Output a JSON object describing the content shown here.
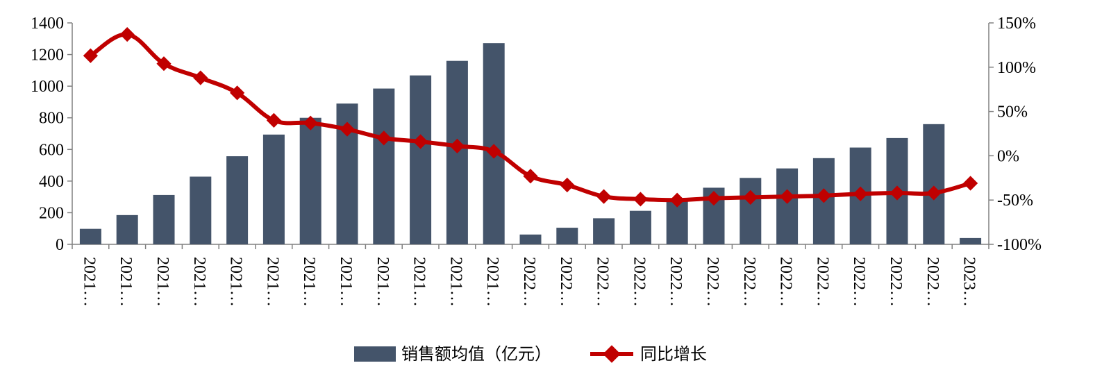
{
  "chart_data": {
    "type": "bar+line",
    "categories": [
      "2021…",
      "2021…",
      "2021…",
      "2021…",
      "2021…",
      "2021…",
      "2021…",
      "2021…",
      "2021…",
      "2021…",
      "2021…",
      "2021…",
      "2022…",
      "2022…",
      "2022…",
      "2022…",
      "2022…",
      "2022…",
      "2022…",
      "2022…",
      "2022…",
      "2022…",
      "2022…",
      "2022…",
      "2023…"
    ],
    "series": [
      {
        "name": "销售额均值（亿元）",
        "type": "bar",
        "axis": "left",
        "color": "#44546A",
        "values": [
          98,
          185,
          312,
          428,
          557,
          694,
          800,
          890,
          985,
          1068,
          1160,
          1272,
          62,
          105,
          165,
          212,
          288,
          358,
          420,
          480,
          545,
          612,
          672,
          760,
          40
        ]
      },
      {
        "name": "同比增长",
        "type": "line",
        "axis": "right",
        "color": "#C00000",
        "marker": "diamond",
        "values": [
          113,
          137,
          104,
          88,
          71,
          40,
          37,
          30,
          20,
          16,
          11,
          5,
          -23,
          -33,
          -46,
          -49,
          -50,
          -48,
          -47,
          -46,
          -45,
          -43,
          -42,
          -42,
          -31
        ]
      }
    ],
    "yaxis_left": {
      "min": 0,
      "max": 1400,
      "ticks": [
        0,
        200,
        400,
        600,
        800,
        1000,
        1200,
        1400
      ]
    },
    "yaxis_right": {
      "min": -100,
      "max": 150,
      "ticks": [
        "-100%",
        "-50%",
        "0%",
        "50%",
        "100%",
        "150%"
      ],
      "tick_values": [
        -100,
        -50,
        0,
        50,
        100,
        150
      ]
    },
    "legend": {
      "position": "bottom",
      "items": [
        "销售额均值（亿元）",
        "同比增长"
      ]
    },
    "grid": false
  }
}
